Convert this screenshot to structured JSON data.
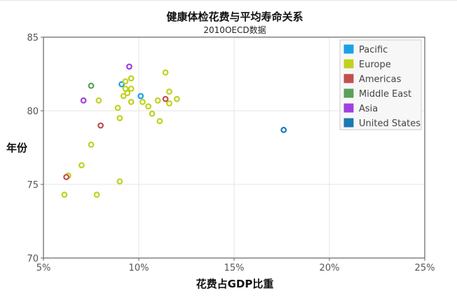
{
  "chart_data": {
    "type": "scatter",
    "title": "健康体检花费与平均寿命关系",
    "subtitle": "2010OECD数据",
    "xlabel": "花费占GDP比重",
    "ylabel": "年份",
    "xlim": [
      5,
      25
    ],
    "ylim": [
      70,
      85
    ],
    "x_ticks": [
      5,
      10,
      15,
      20,
      25
    ],
    "x_tick_labels": [
      "5%",
      "10%",
      "15%",
      "20%",
      "25%"
    ],
    "y_ticks": [
      70,
      75,
      80,
      85
    ],
    "y_tick_labels": [
      "70",
      "75",
      "80",
      "85"
    ],
    "grid": true,
    "legend_position": "top-right",
    "series": [
      {
        "name": "Pacific",
        "color": "#1ba1e2",
        "points": [
          [
            9.1,
            81.8
          ],
          [
            10.1,
            81.0
          ]
        ]
      },
      {
        "name": "Europe",
        "color": "#c1d120",
        "points": [
          [
            6.1,
            74.3
          ],
          [
            6.3,
            75.6
          ],
          [
            7.0,
            76.3
          ],
          [
            7.5,
            77.7
          ],
          [
            7.8,
            74.3
          ],
          [
            7.9,
            80.7
          ],
          [
            8.9,
            80.2
          ],
          [
            9.0,
            79.5
          ],
          [
            9.0,
            75.2
          ],
          [
            9.2,
            81.0
          ],
          [
            9.3,
            81.5
          ],
          [
            9.3,
            82.0
          ],
          [
            9.4,
            81.2
          ],
          [
            9.6,
            82.2
          ],
          [
            9.6,
            81.5
          ],
          [
            9.6,
            80.6
          ],
          [
            10.2,
            80.6
          ],
          [
            10.5,
            80.3
          ],
          [
            10.7,
            79.8
          ],
          [
            11.0,
            80.7
          ],
          [
            11.1,
            79.3
          ],
          [
            11.4,
            82.6
          ],
          [
            11.6,
            81.3
          ],
          [
            11.6,
            80.5
          ],
          [
            12.0,
            80.8
          ]
        ]
      },
      {
        "name": "Americas",
        "color": "#c0504d",
        "points": [
          [
            6.2,
            75.5
          ],
          [
            8.0,
            79.0
          ],
          [
            11.4,
            80.8
          ]
        ]
      },
      {
        "name": "Middle East",
        "color": "#5aa05a",
        "points": [
          [
            7.5,
            81.7
          ]
        ]
      },
      {
        "name": "Asia",
        "color": "#a040e0",
        "points": [
          [
            7.1,
            80.7
          ],
          [
            9.5,
            83.0
          ]
        ]
      },
      {
        "name": "United States",
        "color": "#1c7ab0",
        "points": [
          [
            17.6,
            78.7
          ]
        ]
      }
    ]
  }
}
